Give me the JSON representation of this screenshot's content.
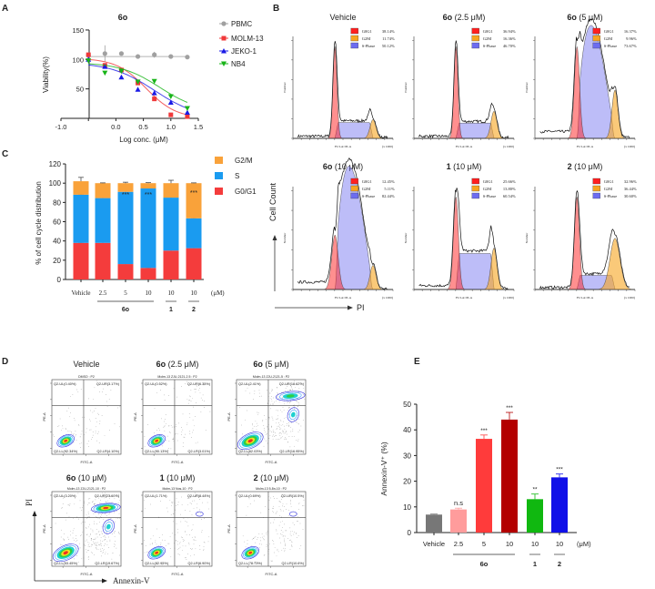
{
  "panel_labels": [
    "A",
    "B",
    "C",
    "D",
    "E"
  ],
  "chart_data": [
    {
      "panel": "A",
      "type": "line",
      "title": "6o",
      "xlabel": "Log conc. (μM)",
      "ylabel": "Viability(%)",
      "xlim": [
        -1.0,
        1.5
      ],
      "ylim": [
        0,
        150
      ],
      "xticks": [
        "-1.0",
        "0.0",
        "0.5",
        "1.0",
        "1.5"
      ],
      "yticks": [
        "50",
        "100",
        "150"
      ],
      "legend_position": "right",
      "x": [
        -0.5,
        -0.2,
        0.1,
        0.4,
        0.7,
        1.0,
        1.3
      ],
      "series": [
        {
          "name": "PBMC",
          "color": "#a0a0a0",
          "marker": "circle",
          "values": [
            107,
            110,
            110,
            105,
            108,
            105,
            104
          ],
          "errors": [
            4,
            14,
            2,
            2,
            5,
            3,
            3
          ]
        },
        {
          "name": "MOLM-13",
          "color": "#f0393a",
          "marker": "square",
          "values": [
            108,
            90,
            82,
            60,
            33,
            6,
            3
          ],
          "errors": [
            3,
            3,
            2,
            2,
            2,
            1,
            1
          ]
        },
        {
          "name": "JEKO-1",
          "color": "#1a1ae6",
          "marker": "triangle-up",
          "values": [
            100,
            88,
            70,
            49,
            43,
            27,
            10
          ],
          "errors": [
            2,
            2,
            2,
            2,
            2,
            2,
            2
          ]
        },
        {
          "name": "NB4",
          "color": "#18b418",
          "marker": "triangle-down",
          "values": [
            98,
            77,
            80,
            62,
            63,
            37,
            17
          ],
          "errors": [
            2,
            2,
            2,
            2,
            3,
            2,
            2
          ]
        }
      ]
    },
    {
      "panel": "B",
      "type": "area",
      "y_axis_arrow": "Cell Count",
      "x_axis_arrow": "PI",
      "hist_xlabel": "FL3-A::PI-A",
      "hist_ylabel": "Number",
      "hist_xunit": "(x 1000)",
      "phase_labels": [
        "G0G1",
        "G2M",
        "S-Phase"
      ],
      "phase_colors": [
        "#ff2020",
        "#f7a520",
        "#6c6cf0"
      ],
      "samples": [
        {
          "title_bold": "",
          "title": "Vehicle",
          "G0G1": "38.14%",
          "G2M": "11.74%",
          "S": "50.12%",
          "values": [
            38.14,
            11.74,
            50.12
          ]
        },
        {
          "title_bold": "6o",
          "title": " (2.5 μM)",
          "G0G1": "36.94%",
          "G2M": "16.36%",
          "S": "46.70%",
          "values": [
            36.94,
            16.36,
            46.7
          ]
        },
        {
          "title_bold": "6o",
          "title": " (5 μM)",
          "G0G1": "16.37%",
          "G2M": "9.96%",
          "S": "73.67%",
          "values": [
            16.37,
            9.96,
            73.67
          ]
        },
        {
          "title_bold": "6o",
          "title": " (10 μM)",
          "G0G1": "12.45%",
          "G2M": "5.11%",
          "S": "82.44%",
          "values": [
            12.45,
            5.11,
            82.44
          ]
        },
        {
          "title_bold": "1",
          "title": " (10 μM)",
          "G0G1": "25.66%",
          "G2M": "13.80%",
          "S": "60.54%",
          "values": [
            25.66,
            13.8,
            60.54
          ]
        },
        {
          "title_bold": "2",
          "title": " (10 μM)",
          "G0G1": "32.96%",
          "G2M": "36.44%",
          "S": "30.60%",
          "values": [
            32.96,
            36.44,
            30.6
          ]
        }
      ]
    },
    {
      "panel": "C",
      "type": "bar",
      "stacked": true,
      "ylabel": "% of cell cycle distribution",
      "ylim": [
        0,
        120
      ],
      "yticks": [
        "0",
        "20",
        "40",
        "60",
        "80",
        "100",
        "120"
      ],
      "categories": [
        "Vehicle",
        "2.5",
        "5",
        "10",
        "10",
        "10"
      ],
      "unit": "(μM)",
      "groups": [
        {
          "label": "6o",
          "from": 1,
          "to": 3
        },
        {
          "label": "1",
          "from": 4,
          "to": 4
        },
        {
          "label": "2",
          "from": 5,
          "to": 5
        }
      ],
      "legend_position": "right",
      "series": [
        {
          "name": "G0/G1",
          "color": "#f43c3c",
          "values": [
            38,
            38,
            16,
            12,
            30,
            32.5
          ],
          "errors": [
            0.5,
            0.8,
            0.8,
            0.5,
            7,
            1.5
          ]
        },
        {
          "name": "S",
          "color": "#1a9bf0",
          "values": [
            50,
            46.5,
            75,
            82.5,
            55,
            31
          ],
          "errors": [
            0.5,
            0.8,
            1.2,
            0.8,
            10,
            0.5
          ]
        },
        {
          "name": "G2/M",
          "color": "#f9a23a",
          "values": [
            14,
            15.5,
            9,
            5.5,
            15,
            36.5
          ],
          "errors": [
            4,
            0.3,
            1,
            0.5,
            3,
            0.3
          ]
        }
      ],
      "significance": [
        "",
        "",
        "***",
        "***",
        "",
        "***"
      ]
    },
    {
      "panel": "D",
      "type": "scatter",
      "y_axis_arrow": "PI",
      "x_axis_arrow": "Annexin-V",
      "plot_xlabel": "FITC-A",
      "plot_ylabel": "PE-A",
      "samples": [
        {
          "title_bold": "",
          "title": "Vehicle",
          "subtitle": "DMSO : P2",
          "UL": "Q2-UL(0.40%)",
          "UR": "Q2-UR(3.17%)",
          "LL": "Q2-LL(92.34%)",
          "LR": "Q2-LR(4.10%)",
          "values": [
            0.4,
            3.17,
            92.34,
            4.1
          ]
        },
        {
          "title_bold": "6o",
          "title": " (2.5 μM)",
          "subtitle": "Molm-13 ZJU-2121-2.5 : P2",
          "UL": "Q2-UL(0.52%)",
          "UR": "Q2-UR(6.35%)",
          "LL": "Q2-LL(90.13%)",
          "LR": "Q2-LR(3.01%)",
          "values": [
            0.52,
            6.35,
            90.13,
            3.01
          ]
        },
        {
          "title_bold": "6o",
          "title": " (5 μM)",
          "subtitle": "Molm-13 ZJU-2121-5 : P2",
          "UL": "Q2-UL(2.41%)",
          "UR": "Q2-UR(18.62%)",
          "LL": "Q2-LL(62.03%)",
          "LR": "Q2-LR(16.95%)",
          "values": [
            2.41,
            18.62,
            62.03,
            16.95
          ]
        },
        {
          "title_bold": "6o",
          "title": " (10 μM)",
          "subtitle": "Molm-13 ZJU-2121-10 : P2",
          "UL": "Q2-UL(3.20%)",
          "UR": "Q2-UR(23.60%)",
          "LL": "Q2-LL(53.45%)",
          "LR": "Q2-LR(19.67%)",
          "values": [
            3.2,
            23.6,
            53.45,
            19.67
          ]
        },
        {
          "title_bold": "1",
          "title": " (10 μM)",
          "subtitle": "Molm-13 Nos-10 : P2",
          "UL": "Q2-UL(1.71%)",
          "UR": "Q2-UR(8.44%)",
          "LL": "Q2-LL(82.95%)",
          "LR": "Q2-LR(6.90%)",
          "values": [
            1.71,
            8.44,
            82.95,
            6.9
          ]
        },
        {
          "title_bold": "2",
          "title": " (10 μM)",
          "subtitle": "Molm-13 5-8n-10 : P2",
          "UL": "Q2-UL(0.69%)",
          "UR": "Q2-UR(10.5%)",
          "LL": "Q2-LL(78.73%)",
          "LR": "Q2-LR(10.6%)",
          "values": [
            0.69,
            10.5,
            78.73,
            10.6
          ]
        }
      ]
    },
    {
      "panel": "E",
      "type": "bar",
      "ylabel": "Annexin-V⁺ (%)",
      "ylim": [
        0,
        50
      ],
      "yticks": [
        "0",
        "10",
        "20",
        "30",
        "40",
        "50"
      ],
      "categories": [
        "Vehicle",
        "2.5",
        "5",
        "10",
        "10",
        "10"
      ],
      "unit": "(μM)",
      "groups": [
        {
          "label": "6o",
          "from": 1,
          "to": 3
        },
        {
          "label": "1",
          "from": 4,
          "to": 4
        },
        {
          "label": "2",
          "from": 5,
          "to": 5
        }
      ],
      "values": [
        7,
        9,
        36.5,
        44,
        13,
        21.5
      ],
      "errors": [
        0.2,
        0.5,
        1.5,
        2.8,
        2,
        1.3
      ],
      "colors": [
        "#777777",
        "#ff9c9c",
        "#ff3b3b",
        "#b30000",
        "#10b810",
        "#1010e8"
      ],
      "significance": [
        "",
        "n.s",
        "***",
        "***",
        "**",
        "***"
      ]
    }
  ]
}
